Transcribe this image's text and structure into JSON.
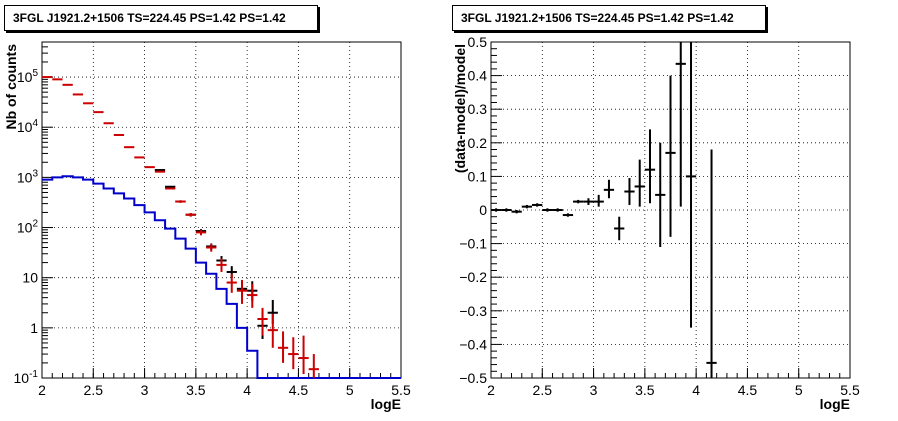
{
  "chart_data": [
    {
      "type": "line",
      "title": "3FGL J1921.2+1506 TS=224.45 PS=1.42 PS=1.42",
      "xlabel": "logE",
      "ylabel": "Nb of counts",
      "xlim": [
        2,
        5.5
      ],
      "ylim": [
        0.1,
        500000
      ],
      "yscale": "log",
      "grid": true,
      "x_ticks": [
        "2",
        "2.5",
        "3",
        "3.5",
        "4",
        "4.5",
        "5",
        "5.5"
      ],
      "y_ticks": [
        "10^-1",
        "1",
        "10",
        "10^2",
        "10^3",
        "10^4",
        "10^5"
      ],
      "series": [
        {
          "color": "#0000cc",
          "style": "step",
          "bins": [
            [
              2.0,
              2.1
            ],
            [
              2.1,
              2.2
            ],
            [
              2.2,
              2.3
            ],
            [
              2.3,
              2.4
            ],
            [
              2.4,
              2.5
            ],
            [
              2.5,
              2.6
            ],
            [
              2.6,
              2.7
            ],
            [
              2.7,
              2.8
            ],
            [
              2.8,
              2.9
            ],
            [
              2.9,
              3.0
            ],
            [
              3.0,
              3.1
            ],
            [
              3.1,
              3.2
            ],
            [
              3.2,
              3.3
            ],
            [
              3.3,
              3.4
            ],
            [
              3.4,
              3.5
            ],
            [
              3.5,
              3.6
            ],
            [
              3.6,
              3.7
            ],
            [
              3.7,
              3.8
            ],
            [
              3.8,
              3.9
            ],
            [
              3.9,
              4.0
            ],
            [
              4.0,
              4.1
            ],
            [
              4.1,
              5.5
            ]
          ],
          "values": [
            900,
            1000,
            1050,
            1000,
            900,
            750,
            600,
            480,
            380,
            280,
            200,
            140,
            95,
            60,
            38,
            20,
            12,
            6,
            3,
            1,
            0.35,
            0.1
          ]
        },
        {
          "color": "#000000",
          "style": "errorbar",
          "x": [
            3.15,
            3.25,
            3.35,
            3.45,
            3.55,
            3.65,
            3.75,
            3.85,
            3.95,
            4.05,
            4.15,
            4.25
          ],
          "y": [
            1400,
            650,
            330,
            180,
            85,
            42,
            22,
            13,
            6,
            5.5,
            1.1,
            2
          ],
          "yerr_low": [
            1360,
            626,
            313,
            167,
            77,
            36,
            18,
            10,
            4,
            3.4,
            0.6,
            1.2
          ],
          "yerr_high": [
            1440,
            674,
            347,
            193,
            93,
            48,
            27,
            17,
            9,
            8.5,
            2.1,
            3.6
          ]
        },
        {
          "color": "#cc0000",
          "style": "errorbar",
          "x": [
            2.05,
            2.15,
            2.25,
            2.35,
            2.45,
            2.55,
            2.65,
            2.75,
            2.85,
            2.95,
            3.05,
            3.15,
            3.25,
            3.35,
            3.45,
            3.55,
            3.65,
            3.75,
            3.85,
            3.95,
            4.05,
            4.15,
            4.25,
            4.35,
            4.45,
            4.55,
            4.65
          ],
          "y": [
            100000,
            90000,
            70000,
            45000,
            30000,
            20000,
            12000,
            7000,
            4000,
            2500,
            1600,
            1300,
            600,
            330,
            180,
            80,
            40,
            18,
            8,
            5.5,
            4.5,
            1.5,
            0.9,
            0.4,
            0.3,
            0.25,
            0.15
          ],
          "yerr_low": [
            99000,
            89000,
            69000,
            44500,
            29600,
            19700,
            11800,
            6880,
            3920,
            2440,
            1550,
            1260,
            575,
            310,
            165,
            70,
            33,
            13,
            5,
            3,
            2.5,
            0.7,
            0.4,
            0.2,
            0.15,
            0.12,
            0.1
          ],
          "yerr_high": [
            101000,
            91000,
            71000,
            45500,
            30400,
            20300,
            12200,
            7120,
            4080,
            2560,
            1650,
            1340,
            625,
            350,
            195,
            90,
            47,
            24,
            12,
            9,
            7.5,
            2.5,
            1.9,
            0.85,
            0.65,
            0.7,
            0.3
          ]
        }
      ]
    },
    {
      "type": "scatter",
      "title": "3FGL J1921.2+1506 TS=224.45 PS=1.42 PS=1.42",
      "xlabel": "logE",
      "ylabel": "(data-model)/model",
      "xlim": [
        2,
        5.5
      ],
      "ylim": [
        -0.5,
        0.5
      ],
      "grid": true,
      "x_ticks": [
        "2",
        "2.5",
        "3",
        "3.5",
        "4",
        "4.5",
        "5",
        "5.5"
      ],
      "y_ticks": [
        "-0.5",
        "-0.4",
        "-0.3",
        "-0.2",
        "-0.1",
        "0",
        "0.1",
        "0.2",
        "0.3",
        "0.4",
        "0.5"
      ],
      "series": [
        {
          "color": "#000000",
          "style": "errorbar",
          "x": [
            2.05,
            2.15,
            2.25,
            2.35,
            2.45,
            2.55,
            2.65,
            2.75,
            2.85,
            2.95,
            3.05,
            3.15,
            3.25,
            3.35,
            3.45,
            3.55,
            3.65,
            3.75,
            3.85,
            3.95,
            4.15
          ],
          "y": [
            0.0,
            0.0,
            -0.005,
            0.01,
            0.015,
            0.0,
            0.0,
            -0.015,
            0.025,
            0.025,
            0.025,
            0.06,
            -0.055,
            0.055,
            0.07,
            0.12,
            0.045,
            0.17,
            0.435,
            0.1,
            -0.455
          ],
          "yerr_low": [
            -0.005,
            -0.005,
            -0.01,
            0.005,
            0.01,
            -0.005,
            -0.005,
            -0.02,
            0.02,
            0.015,
            0.01,
            0.035,
            -0.09,
            0.015,
            0.01,
            0.02,
            -0.11,
            -0.08,
            0.01,
            -0.35,
            -1.0
          ],
          "yerr_high": [
            0.005,
            0.005,
            0.0,
            0.015,
            0.02,
            0.005,
            0.005,
            -0.01,
            0.03,
            0.035,
            0.045,
            0.09,
            -0.02,
            0.095,
            0.15,
            0.24,
            0.2,
            0.4,
            1.0,
            0.6,
            0.18
          ]
        }
      ]
    }
  ]
}
